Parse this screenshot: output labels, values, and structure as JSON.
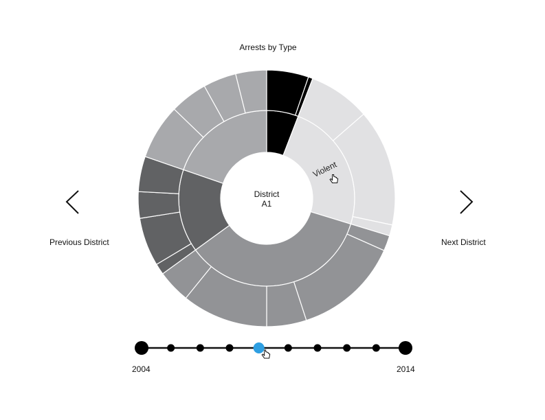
{
  "chart_data": {
    "type": "sunburst",
    "title": "Arrests by Type",
    "center_label": [
      "District",
      "A1"
    ],
    "colors": {
      "black": "#000000",
      "light": "#e1e1e3",
      "mid": "#929396",
      "dark": "#616264",
      "gray": "#a8a9ac",
      "accent": "#2e9fe2"
    },
    "inner_ring": [
      {
        "name": "",
        "value": 21,
        "color": "black"
      },
      {
        "name": "Violent",
        "value": 86,
        "color": "light"
      },
      {
        "name": "",
        "value": 127,
        "color": "mid"
      },
      {
        "name": "",
        "value": 55,
        "color": "dark"
      },
      {
        "name": "",
        "value": 71,
        "color": "gray"
      }
    ],
    "outer_ring": [
      {
        "parent": 0,
        "value": 19,
        "color": "black"
      },
      {
        "parent": 0,
        "value": 2,
        "color": "black"
      },
      {
        "parent": 1,
        "value": 28,
        "color": "light"
      },
      {
        "parent": 1,
        "value": 53,
        "color": "light"
      },
      {
        "parent": 1,
        "value": 5,
        "color": "light"
      },
      {
        "parent": 2,
        "value": 7,
        "color": "mid"
      },
      {
        "parent": 2,
        "value": 48,
        "color": "mid"
      },
      {
        "parent": 2,
        "value": 18,
        "color": "mid"
      },
      {
        "parent": 2,
        "value": 39,
        "color": "mid"
      },
      {
        "parent": 2,
        "value": 15,
        "color": "mid"
      },
      {
        "parent": 3,
        "value": 5,
        "color": "dark"
      },
      {
        "parent": 3,
        "value": 22,
        "color": "dark"
      },
      {
        "parent": 3,
        "value": 12,
        "color": "dark"
      },
      {
        "parent": 3,
        "value": 16,
        "color": "dark"
      },
      {
        "parent": 4,
        "value": 25,
        "color": "gray"
      },
      {
        "parent": 4,
        "value": 17,
        "color": "gray"
      },
      {
        "parent": 4,
        "value": 15,
        "color": "gray"
      },
      {
        "parent": 4,
        "value": 14,
        "color": "gray"
      }
    ]
  },
  "navigation": {
    "previous_label": "Previous District",
    "next_label": "Next District"
  },
  "timeline": {
    "start_label": "2004",
    "end_label": "2014",
    "stops": 10,
    "selected_index": 4
  }
}
